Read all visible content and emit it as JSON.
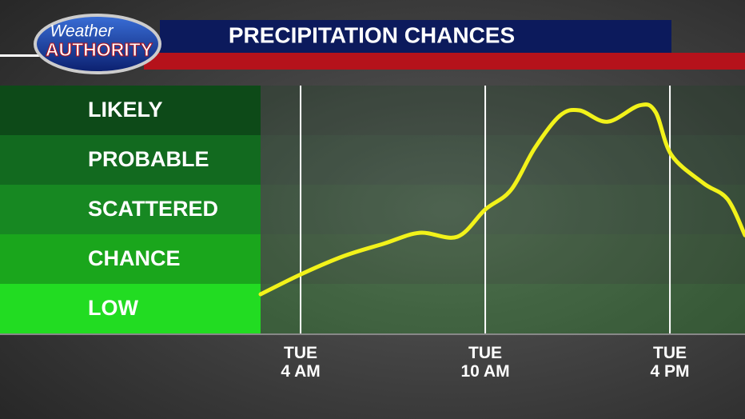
{
  "header": {
    "logo_top": "Weather",
    "logo_bottom": "AUTHORITY"
  },
  "chart_data": {
    "type": "line",
    "title": "PRECIPITATION CHANCES",
    "categories": [
      "LOW",
      "CHANCE",
      "SCATTERED",
      "PROBABLE",
      "LIKELY"
    ],
    "band_colors": [
      "#22dc22",
      "#1aa61c",
      "#178822",
      "#126a1f",
      "#0d4a18"
    ],
    "ylim": [
      0,
      5
    ],
    "xlim": [
      2.7,
      18.44
    ],
    "xticks": [
      {
        "value": 4,
        "label": "TUE\n4 AM"
      },
      {
        "value": 10,
        "label": "TUE\n10 AM"
      },
      {
        "value": 16,
        "label": "TUE\n4 PM"
      }
    ],
    "grid": true,
    "series": [
      {
        "color": "#f2f21a",
        "x": [
          2.7,
          4,
          5.4,
          6.7,
          7.87,
          9.09,
          10,
          10.83,
          11.61,
          12.42,
          13.06,
          13.97,
          15.01,
          15.53,
          16.05,
          17.09,
          17.87,
          18.44
        ],
        "values": [
          0.79,
          1.19,
          1.56,
          1.81,
          2.03,
          1.95,
          2.5,
          2.89,
          3.74,
          4.39,
          4.5,
          4.27,
          4.6,
          4.47,
          3.6,
          3.03,
          2.71,
          1.98
        ]
      }
    ]
  }
}
